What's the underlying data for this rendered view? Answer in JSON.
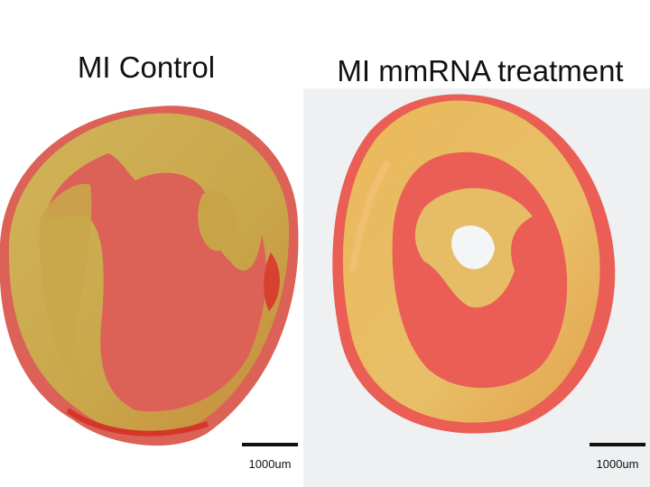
{
  "panels": [
    {
      "title": "MI Control",
      "scale_bar": "1000um"
    },
    {
      "title": "MI mmRNA treatment",
      "scale_bar": "1000um"
    }
  ]
}
